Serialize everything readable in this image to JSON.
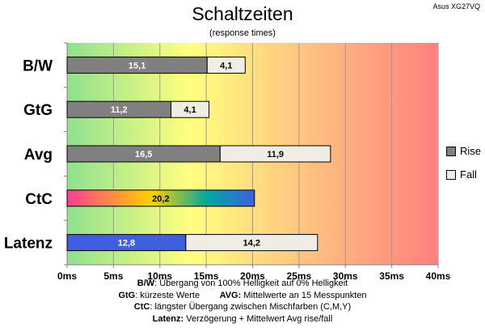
{
  "header": {
    "title": "Schaltzeiten",
    "subtitle": "(response times)",
    "model": "Asus XG27VQ"
  },
  "colors": {
    "rise": "#808080",
    "fall": "#f0ede4",
    "latenz_rise": "#3f5fe0",
    "gradient": [
      "#8fe08f",
      "#ffff80",
      "#ffc080",
      "#ff7f7f"
    ],
    "ctc_gradient": [
      "#ff3f8f",
      "#ffd000",
      "#00a8a0",
      "#3f5fe0"
    ]
  },
  "chart_data": {
    "type": "bar",
    "orientation": "horizontal",
    "stacked": true,
    "title": "Schaltzeiten",
    "subtitle": "(response times)",
    "categories": [
      "B/W",
      "GtG",
      "Avg",
      "CtC",
      "Latenz"
    ],
    "series": [
      {
        "name": "Rise",
        "values": [
          15.1,
          11.2,
          16.5,
          20.2,
          12.8
        ],
        "labels": [
          "15,1",
          "11,2",
          "16,5",
          "20,2",
          "12,8"
        ]
      },
      {
        "name": "Fall",
        "values": [
          4.1,
          4.1,
          11.9,
          null,
          14.2
        ],
        "labels": [
          "4,1",
          "4,1",
          "11,9",
          "",
          "14,2"
        ]
      }
    ],
    "xlim": [
      0,
      40
    ],
    "xticks": [
      0,
      5,
      10,
      15,
      20,
      25,
      30,
      35,
      40
    ],
    "xtick_labels": [
      "0ms",
      "5ms",
      "10ms",
      "15ms",
      "20ms",
      "25ms",
      "30ms",
      "35ms",
      "40ms"
    ],
    "grid": true,
    "legend": "right"
  },
  "legend": {
    "items": [
      {
        "label": "Rise"
      },
      {
        "label": "Fall"
      }
    ]
  },
  "footnotes": {
    "bw_key": "B/W",
    "bw_text": ":  Übergang von 100% Helligkeit auf 0% Helligkeit",
    "gtg_key": "GtG",
    "gtg_text": ": kürzeste  Werte",
    "avg_key": "AVG:",
    "avg_text": " Mittelwerte  an 15 Messpunkten",
    "ctc_key": "CtC",
    "ctc_text": ": längster Übergang  zwischen Mischfarben (C,M,Y)",
    "latenz_key": "Latenz:",
    "latenz_text": " Verzögerung  + Mittelwert Avg rise/fall"
  }
}
